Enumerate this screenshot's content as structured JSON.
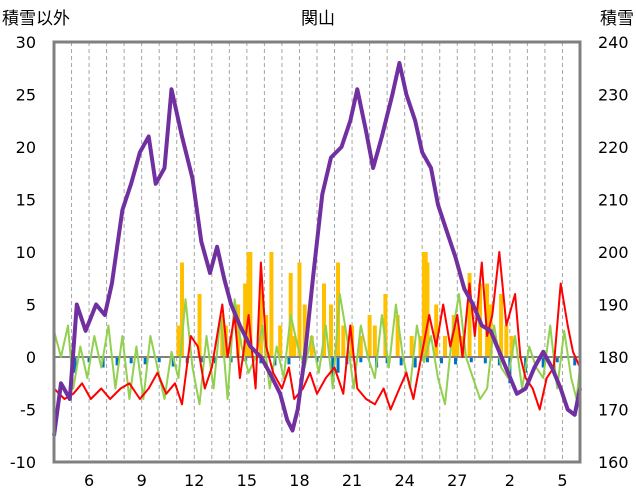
{
  "chart_data": {
    "type": "line",
    "title": "関山",
    "ylabel_left": "積雪以外",
    "ylabel_right": "積雪",
    "ylim_left": [
      -10,
      30
    ],
    "ylim_right": [
      160,
      240
    ],
    "yticks_left": [
      -10,
      -5,
      0,
      5,
      10,
      15,
      20,
      25,
      30
    ],
    "yticks_right": [
      160,
      170,
      180,
      190,
      200,
      210,
      220,
      230,
      240
    ],
    "x_range": [
      0,
      30
    ],
    "x_tick_labels": [
      {
        "x": 2,
        "label": "6"
      },
      {
        "x": 5,
        "label": "9"
      },
      {
        "x": 8,
        "label": "12"
      },
      {
        "x": 11,
        "label": "15"
      },
      {
        "x": 14,
        "label": "18"
      },
      {
        "x": 17,
        "label": "21"
      },
      {
        "x": 20,
        "label": "24"
      },
      {
        "x": 23,
        "label": "27"
      },
      {
        "x": 26,
        "label": "2"
      },
      {
        "x": 29,
        "label": "5"
      }
    ],
    "grid": "vertical-dashed-daily",
    "legend": "none",
    "colors": {
      "snow_depth": "#7030a0",
      "red_series": "#ff0000",
      "green_series": "#92d050",
      "precipitation": "#ffc000",
      "change": "#0070c0",
      "zero_line": "#808080",
      "frame": "#808080"
    },
    "snow_depth": {
      "axis": "right",
      "points": [
        [
          0.0,
          165
        ],
        [
          0.4,
          175
        ],
        [
          0.9,
          172
        ],
        [
          1.3,
          190
        ],
        [
          1.8,
          185
        ],
        [
          2.4,
          190
        ],
        [
          2.9,
          188
        ],
        [
          3.3,
          194
        ],
        [
          3.9,
          208
        ],
        [
          4.4,
          213
        ],
        [
          4.9,
          219
        ],
        [
          5.4,
          222
        ],
        [
          5.8,
          213
        ],
        [
          6.3,
          216
        ],
        [
          6.7,
          231
        ],
        [
          6.9,
          228
        ],
        [
          7.3,
          222
        ],
        [
          7.9,
          214
        ],
        [
          8.4,
          202
        ],
        [
          8.9,
          196
        ],
        [
          9.3,
          201
        ],
        [
          9.7,
          195
        ],
        [
          10.1,
          190
        ],
        [
          10.6,
          186
        ],
        [
          11.2,
          182
        ],
        [
          11.8,
          180
        ],
        [
          12.3,
          177
        ],
        [
          12.9,
          173
        ],
        [
          13.3,
          168
        ],
        [
          13.6,
          166
        ],
        [
          13.9,
          170
        ],
        [
          14.3,
          180
        ],
        [
          14.8,
          196
        ],
        [
          15.3,
          211
        ],
        [
          15.8,
          218
        ],
        [
          16.4,
          220
        ],
        [
          16.9,
          225
        ],
        [
          17.3,
          231
        ],
        [
          17.8,
          223
        ],
        [
          18.2,
          216
        ],
        [
          18.7,
          222
        ],
        [
          19.3,
          230
        ],
        [
          19.7,
          236
        ],
        [
          20.1,
          230
        ],
        [
          20.6,
          225
        ],
        [
          21.0,
          219
        ],
        [
          21.5,
          216
        ],
        [
          21.9,
          209
        ],
        [
          22.4,
          204
        ],
        [
          22.9,
          199
        ],
        [
          23.4,
          193
        ],
        [
          23.9,
          190
        ],
        [
          24.4,
          186
        ],
        [
          24.9,
          185
        ],
        [
          25.4,
          181
        ],
        [
          25.9,
          177
        ],
        [
          26.4,
          173
        ],
        [
          26.9,
          174
        ],
        [
          27.4,
          178
        ],
        [
          27.9,
          181
        ],
        [
          28.4,
          178
        ],
        [
          28.9,
          174
        ],
        [
          29.3,
          170
        ],
        [
          29.7,
          169
        ],
        [
          30.0,
          174
        ]
      ]
    },
    "red_series": {
      "axis": "left",
      "points": [
        [
          0.0,
          -3.0
        ],
        [
          0.6,
          -4.0
        ],
        [
          1.1,
          -3.5
        ],
        [
          1.6,
          -2.5
        ],
        [
          2.1,
          -4.0
        ],
        [
          2.7,
          -3.0
        ],
        [
          3.2,
          -4.0
        ],
        [
          3.8,
          -3.0
        ],
        [
          4.3,
          -2.5
        ],
        [
          4.9,
          -4.0
        ],
        [
          5.4,
          -3.0
        ],
        [
          5.9,
          -1.5
        ],
        [
          6.4,
          -3.5
        ],
        [
          6.9,
          -2.5
        ],
        [
          7.3,
          -4.5
        ],
        [
          7.8,
          2.0
        ],
        [
          8.2,
          1.0
        ],
        [
          8.6,
          -3.0
        ],
        [
          9.0,
          -1.0
        ],
        [
          9.6,
          5.0
        ],
        [
          9.9,
          0.0
        ],
        [
          10.3,
          4.0
        ],
        [
          10.6,
          -2.0
        ],
        [
          11.1,
          4.0
        ],
        [
          11.5,
          -3.0
        ],
        [
          11.8,
          9.0
        ],
        [
          12.1,
          1.0
        ],
        [
          12.5,
          -1.5
        ],
        [
          13.0,
          -3.0
        ],
        [
          13.4,
          -1.0
        ],
        [
          13.7,
          -4.0
        ],
        [
          14.2,
          -3.0
        ],
        [
          14.6,
          -1.5
        ],
        [
          15.0,
          -3.5
        ],
        [
          15.5,
          -2.0
        ],
        [
          16.0,
          -1.0
        ],
        [
          16.5,
          -3.5
        ],
        [
          16.9,
          3.0
        ],
        [
          17.3,
          -3.0
        ],
        [
          17.8,
          -4.0
        ],
        [
          18.3,
          -4.5
        ],
        [
          18.8,
          -3.0
        ],
        [
          19.2,
          -5.0
        ],
        [
          19.7,
          -3.0
        ],
        [
          20.1,
          -1.5
        ],
        [
          20.5,
          -4.0
        ],
        [
          21.0,
          0.5
        ],
        [
          21.4,
          4.0
        ],
        [
          21.8,
          1.0
        ],
        [
          22.2,
          5.0
        ],
        [
          22.6,
          1.0
        ],
        [
          23.0,
          4.0
        ],
        [
          23.3,
          0.0
        ],
        [
          23.7,
          7.0
        ],
        [
          24.0,
          2.0
        ],
        [
          24.4,
          9.0
        ],
        [
          24.7,
          2.0
        ],
        [
          25.0,
          4.0
        ],
        [
          25.4,
          10.0
        ],
        [
          25.8,
          3.0
        ],
        [
          26.3,
          6.0
        ],
        [
          26.6,
          0.0
        ],
        [
          26.9,
          -2.0
        ],
        [
          27.3,
          -3.0
        ],
        [
          27.7,
          -5.0
        ],
        [
          28.1,
          -2.0
        ],
        [
          28.5,
          -1.0
        ],
        [
          28.9,
          7.0
        ],
        [
          29.3,
          3.0
        ],
        [
          29.6,
          0.5
        ],
        [
          30.0,
          -1.0
        ]
      ]
    },
    "green_series": {
      "axis": "left",
      "points": [
        [
          0.0,
          2.5
        ],
        [
          0.4,
          0.0
        ],
        [
          0.8,
          3.0
        ],
        [
          1.1,
          -3.0
        ],
        [
          1.5,
          1.0
        ],
        [
          1.9,
          -2.0
        ],
        [
          2.3,
          2.0
        ],
        [
          2.7,
          -1.0
        ],
        [
          3.1,
          3.0
        ],
        [
          3.5,
          -3.0
        ],
        [
          3.9,
          2.0
        ],
        [
          4.3,
          -4.0
        ],
        [
          4.7,
          1.0
        ],
        [
          5.1,
          -4.0
        ],
        [
          5.5,
          2.0
        ],
        [
          5.9,
          -1.0
        ],
        [
          6.3,
          -4.0
        ],
        [
          6.7,
          0.5
        ],
        [
          7.1,
          -2.0
        ],
        [
          7.5,
          5.5
        ],
        [
          7.9,
          -1.0
        ],
        [
          8.3,
          -4.5
        ],
        [
          8.7,
          2.0
        ],
        [
          9.1,
          -3.0
        ],
        [
          9.5,
          4.0
        ],
        [
          9.9,
          -4.0
        ],
        [
          10.3,
          5.5
        ],
        [
          10.7,
          1.0
        ],
        [
          11.1,
          -1.5
        ],
        [
          11.5,
          0.0
        ],
        [
          11.9,
          3.0
        ],
        [
          12.3,
          -3.0
        ],
        [
          12.7,
          1.0
        ],
        [
          13.1,
          -2.0
        ],
        [
          13.5,
          4.0
        ],
        [
          13.9,
          1.0
        ],
        [
          14.3,
          -1.0
        ],
        [
          14.7,
          2.0
        ],
        [
          15.1,
          -1.5
        ],
        [
          15.5,
          3.0
        ],
        [
          15.9,
          -3.0
        ],
        [
          16.3,
          6.0
        ],
        [
          16.7,
          2.0
        ],
        [
          17.1,
          -3.0
        ],
        [
          17.5,
          3.0
        ],
        [
          17.9,
          0.0
        ],
        [
          18.3,
          -2.0
        ],
        [
          18.7,
          4.0
        ],
        [
          19.1,
          -1.0
        ],
        [
          19.5,
          5.0
        ],
        [
          19.9,
          0.0
        ],
        [
          20.3,
          -3.0
        ],
        [
          20.7,
          3.0
        ],
        [
          21.1,
          -0.5
        ],
        [
          21.5,
          2.0
        ],
        [
          21.9,
          -2.0
        ],
        [
          22.3,
          -4.5
        ],
        [
          22.7,
          2.0
        ],
        [
          23.1,
          6.0
        ],
        [
          23.5,
          0.0
        ],
        [
          23.9,
          -2.0
        ],
        [
          24.3,
          -4.0
        ],
        [
          24.7,
          -3.0
        ],
        [
          25.1,
          3.0
        ],
        [
          25.5,
          -1.0
        ],
        [
          25.9,
          -2.0
        ],
        [
          26.3,
          2.0
        ],
        [
          26.7,
          -3.0
        ],
        [
          27.1,
          1.0
        ],
        [
          27.5,
          -1.0
        ],
        [
          27.9,
          -2.0
        ],
        [
          28.3,
          3.0
        ],
        [
          28.7,
          -3.0
        ],
        [
          29.1,
          2.5
        ],
        [
          29.5,
          -2.0
        ],
        [
          29.8,
          -4.0
        ],
        [
          30.0,
          -1.0
        ]
      ]
    },
    "precipitation": {
      "axis": "left",
      "bars": [
        [
          7.1,
          3.0
        ],
        [
          7.3,
          9.0
        ],
        [
          8.3,
          6.0
        ],
        [
          9.6,
          4.0
        ],
        [
          9.8,
          3.0
        ],
        [
          10.5,
          5.0
        ],
        [
          10.9,
          7.0
        ],
        [
          11.1,
          10.0
        ],
        [
          11.2,
          10.0
        ],
        [
          11.8,
          7.0
        ],
        [
          12.1,
          4.0
        ],
        [
          12.4,
          10.0
        ],
        [
          12.9,
          3.0
        ],
        [
          13.5,
          8.0
        ],
        [
          13.7,
          2.0
        ],
        [
          14.0,
          9.0
        ],
        [
          14.3,
          5.0
        ],
        [
          14.7,
          2.0
        ],
        [
          15.4,
          7.0
        ],
        [
          15.8,
          5.0
        ],
        [
          16.2,
          9.0
        ],
        [
          16.5,
          3.0
        ],
        [
          17.0,
          3.0
        ],
        [
          17.5,
          2.0
        ],
        [
          18.0,
          4.0
        ],
        [
          18.3,
          3.0
        ],
        [
          18.9,
          6.0
        ],
        [
          19.6,
          4.0
        ],
        [
          20.4,
          2.0
        ],
        [
          20.9,
          2.0
        ],
        [
          21.1,
          10.0
        ],
        [
          21.2,
          10.0
        ],
        [
          21.3,
          9.0
        ],
        [
          21.8,
          5.0
        ],
        [
          22.3,
          2.0
        ],
        [
          22.8,
          4.0
        ],
        [
          23.0,
          3.0
        ],
        [
          23.3,
          2.0
        ],
        [
          23.7,
          8.0
        ],
        [
          24.3,
          7.0
        ],
        [
          24.7,
          7.0
        ],
        [
          24.9,
          5.0
        ],
        [
          25.5,
          6.0
        ],
        [
          25.8,
          3.0
        ],
        [
          26.1,
          2.0
        ]
      ]
    },
    "change": {
      "axis": "left",
      "bars": [
        [
          1.2,
          -1.5
        ],
        [
          2.0,
          -0.5
        ],
        [
          2.8,
          -1.0
        ],
        [
          3.6,
          -0.8
        ],
        [
          4.4,
          -0.6
        ],
        [
          5.2,
          -0.7
        ],
        [
          6.0,
          -0.5
        ],
        [
          6.8,
          -0.9
        ],
        [
          7.6,
          -0.6
        ],
        [
          8.4,
          -0.5
        ],
        [
          9.2,
          -0.6
        ],
        [
          10.1,
          -0.5
        ],
        [
          10.9,
          -0.4
        ],
        [
          11.8,
          -0.6
        ],
        [
          12.6,
          -0.8
        ],
        [
          13.4,
          -0.7
        ],
        [
          14.2,
          -0.6
        ],
        [
          15.0,
          -0.5
        ],
        [
          15.9,
          -2.0
        ],
        [
          16.2,
          -1.5
        ],
        [
          16.7,
          -0.7
        ],
        [
          17.5,
          -0.5
        ],
        [
          18.4,
          -1.0
        ],
        [
          19.0,
          -0.6
        ],
        [
          19.8,
          -0.8
        ],
        [
          20.6,
          -1.0
        ],
        [
          21.3,
          -0.5
        ],
        [
          22.1,
          -0.6
        ],
        [
          22.9,
          -0.7
        ],
        [
          23.8,
          -0.5
        ],
        [
          24.6,
          -0.6
        ],
        [
          25.4,
          -0.8
        ],
        [
          26.0,
          -2.5
        ],
        [
          26.9,
          -1.5
        ],
        [
          27.9,
          -1.0
        ],
        [
          28.7,
          -0.5
        ],
        [
          29.7,
          -0.8
        ]
      ]
    }
  }
}
